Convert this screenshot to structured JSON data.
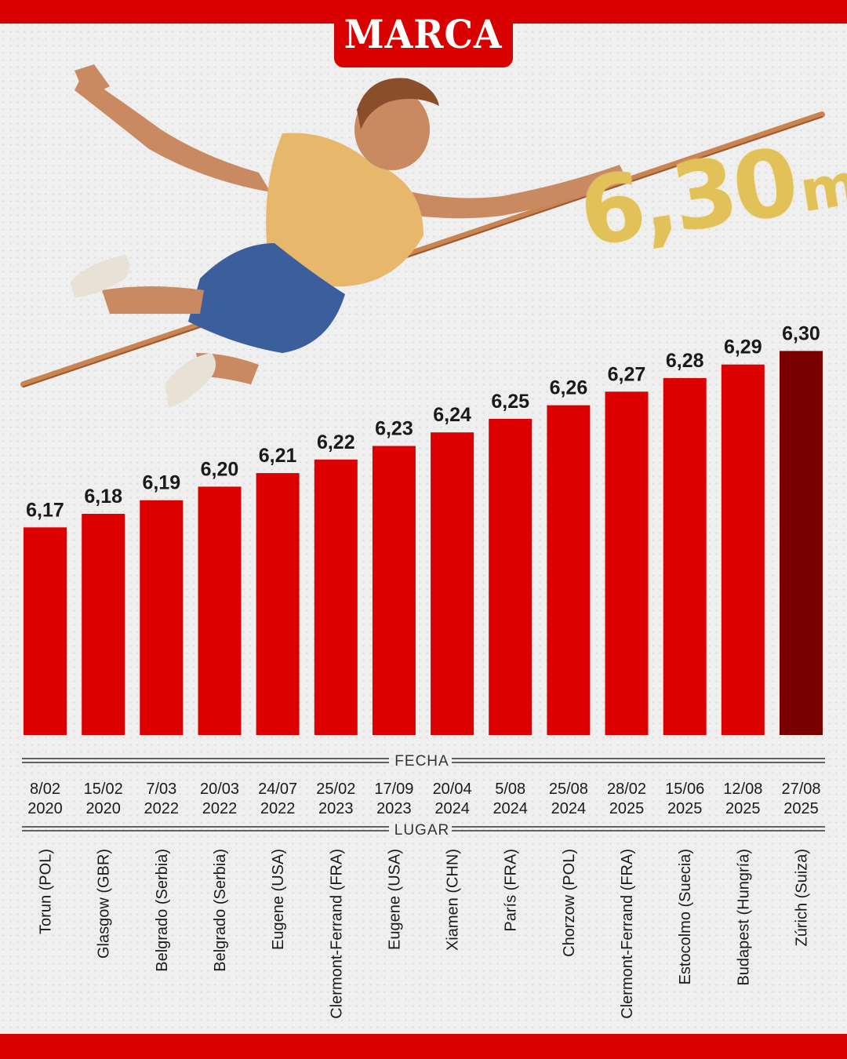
{
  "brand": {
    "logo_text": "MARCA",
    "accent_color": "#d90000",
    "highlight_color": "#7a0000",
    "record_color": "#e2c158"
  },
  "hero": {
    "record_value": "6,30",
    "record_unit": "m"
  },
  "sections": {
    "date_label": "FECHA",
    "place_label": "LUGAR"
  },
  "chart_data": {
    "type": "bar",
    "categories": [
      "Torun (POL)",
      "Glasgow (GBR)",
      "Belgrado (Serbia)",
      "Belgrado (Serbia)",
      "Eugene (USA)",
      "Clermont-Ferrand (FRA)",
      "Eugene (USA)",
      "Xiamen (CHN)",
      "París (FRA)",
      "Chorzow (POL)",
      "Clermont-Ferrand (FRA)",
      "Estocolmo (Suecia)",
      "Budapest (Hungría)",
      "Zúrich (Suiza)"
    ],
    "dates": [
      [
        "8/02",
        "2020"
      ],
      [
        "15/02",
        "2020"
      ],
      [
        "7/03",
        "2022"
      ],
      [
        "20/03",
        "2022"
      ],
      [
        "24/07",
        "2022"
      ],
      [
        "25/02",
        "2023"
      ],
      [
        "17/09",
        "2023"
      ],
      [
        "20/04",
        "2024"
      ],
      [
        "5/08",
        "2024"
      ],
      [
        "25/08",
        "2024"
      ],
      [
        "28/02",
        "2025"
      ],
      [
        "15/06",
        "2025"
      ],
      [
        "12/08",
        "2025"
      ],
      [
        "27/08",
        "2025"
      ]
    ],
    "values": [
      6.17,
      6.18,
      6.19,
      6.2,
      6.21,
      6.22,
      6.23,
      6.24,
      6.25,
      6.26,
      6.27,
      6.28,
      6.29,
      6.3
    ],
    "value_labels": [
      "6,17",
      "6,18",
      "6,19",
      "6,20",
      "6,21",
      "6,22",
      "6,23",
      "6,24",
      "6,25",
      "6,26",
      "6,27",
      "6,28",
      "6,29",
      "6,30"
    ],
    "highlight_index": 13,
    "bar_color": "#dd0000",
    "highlight_bar_color": "#7a0000",
    "grid": false
  }
}
